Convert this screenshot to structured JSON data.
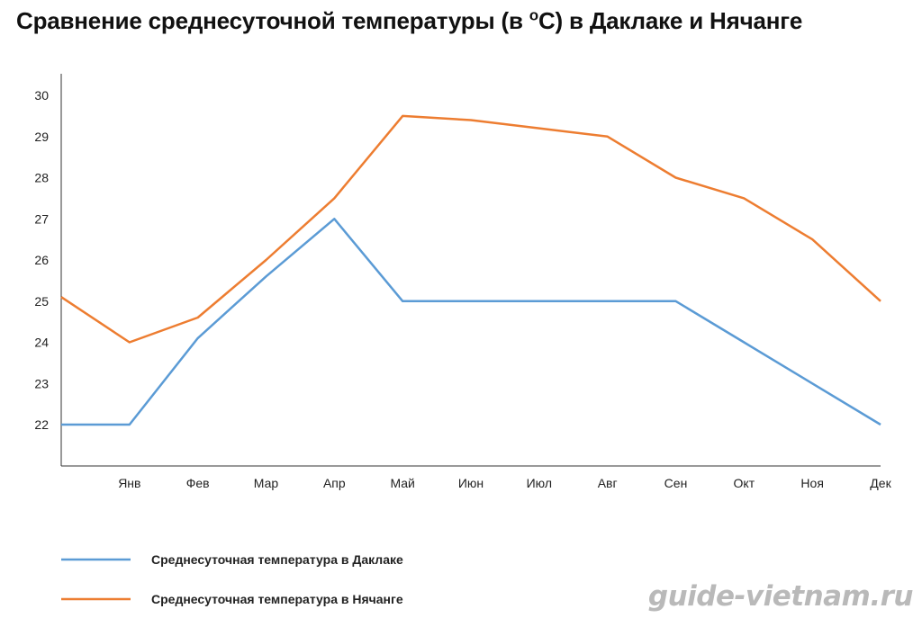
{
  "chart_data": {
    "type": "line",
    "title_main": "Сравнение среднесуточной температуры (в ",
    "title_sup": "о",
    "title_rest": "С) в Даклаке и Нячанге",
    "categories": [
      "",
      "Янв",
      "Фев",
      "Мар",
      "Апр",
      "Май",
      "Июн",
      "Июл",
      "Авг",
      "Сен",
      "Окт",
      "Ноя",
      "Дек"
    ],
    "y_ticks": [
      22,
      23,
      24,
      25,
      26,
      27,
      28,
      29,
      30
    ],
    "ylim": [
      21,
      30.5
    ],
    "series": [
      {
        "name": "Среднесуточная температура в Даклаке",
        "color": "#5b9bd5",
        "values": [
          22.0,
          22.0,
          24.1,
          25.6,
          27.0,
          25.0,
          25.0,
          25.0,
          25.0,
          25.0,
          24.0,
          23.0,
          22.0
        ]
      },
      {
        "name": "Среднесуточная температура в Нячанге",
        "color": "#ed7d31",
        "values": [
          25.1,
          24.0,
          24.6,
          26.0,
          27.5,
          29.5,
          29.4,
          29.2,
          29.0,
          28.0,
          27.5,
          26.5,
          25.0
        ]
      }
    ],
    "grid": false,
    "legend": "bottom-left"
  },
  "watermark": "guide-vietnam.ru"
}
